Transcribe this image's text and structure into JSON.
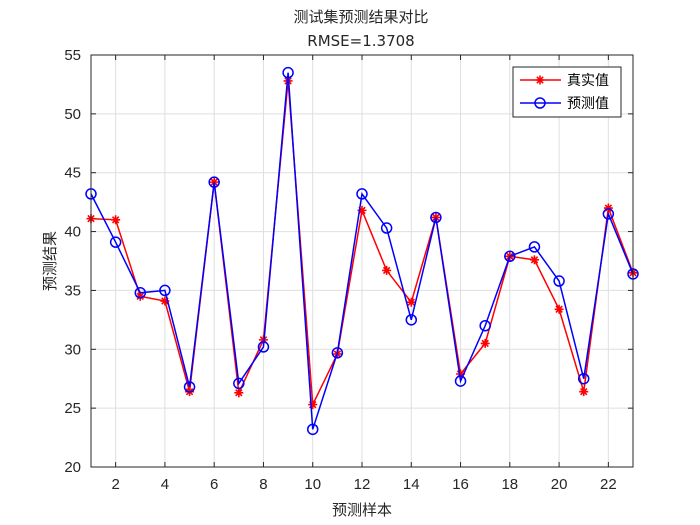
{
  "chart_data": {
    "type": "line",
    "title": "测试集预测结果对比",
    "subtitle": "RMSE=1.3708",
    "xlabel": "预测样本",
    "ylabel": "预测结果",
    "xlim": [
      1,
      23
    ],
    "ylim": [
      20,
      55
    ],
    "xticks": [
      2,
      4,
      6,
      8,
      10,
      12,
      14,
      16,
      18,
      20,
      22
    ],
    "yticks": [
      20,
      25,
      30,
      35,
      40,
      45,
      50,
      55
    ],
    "grid": true,
    "legend_position": "top-right",
    "x": [
      1,
      2,
      3,
      4,
      5,
      6,
      7,
      8,
      9,
      10,
      11,
      12,
      13,
      14,
      15,
      16,
      17,
      18,
      19,
      20,
      21,
      22,
      23
    ],
    "series": [
      {
        "name": "真实值",
        "color": "#ff0000",
        "marker": "asterisk",
        "values": [
          41.1,
          41.0,
          34.5,
          34.1,
          26.4,
          44.2,
          26.3,
          30.8,
          52.8,
          25.3,
          29.6,
          41.8,
          36.7,
          34.0,
          41.2,
          27.9,
          30.5,
          37.9,
          37.6,
          33.4,
          26.4,
          42.0,
          36.5
        ]
      },
      {
        "name": "预测值",
        "color": "#0000ff",
        "marker": "circle",
        "values": [
          43.2,
          39.1,
          34.8,
          35.0,
          26.8,
          44.2,
          27.1,
          30.2,
          53.5,
          23.2,
          29.7,
          43.2,
          40.3,
          32.5,
          41.2,
          27.3,
          32.0,
          37.9,
          38.7,
          35.8,
          27.5,
          41.5,
          36.4
        ]
      }
    ]
  }
}
